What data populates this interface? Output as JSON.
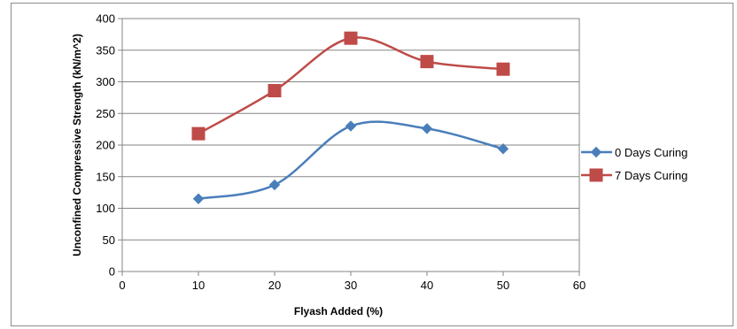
{
  "chart_data": {
    "type": "line",
    "title": "",
    "xlabel": "Flyash Added (%)",
    "ylabel": "Unconfined Compressive Strength (kN/m^2)",
    "xlim": [
      0,
      60
    ],
    "ylim": [
      0,
      400
    ],
    "xticks": [
      0,
      10,
      20,
      30,
      40,
      50,
      60
    ],
    "yticks": [
      0,
      50,
      100,
      150,
      200,
      250,
      300,
      350,
      400
    ],
    "grid": "horizontal",
    "smooth": true,
    "legend_position": "right",
    "series": [
      {
        "name": "0 Days Curing",
        "color": "#4a7ebb",
        "marker": "diamond",
        "x": [
          10,
          20,
          30,
          40,
          50
        ],
        "values": [
          115,
          137,
          230,
          226,
          194
        ]
      },
      {
        "name": "7 Days Curing",
        "color": "#be4b48",
        "marker": "square",
        "x": [
          10,
          20,
          30,
          40,
          50
        ],
        "values": [
          218,
          286,
          369,
          332,
          320
        ]
      }
    ]
  }
}
